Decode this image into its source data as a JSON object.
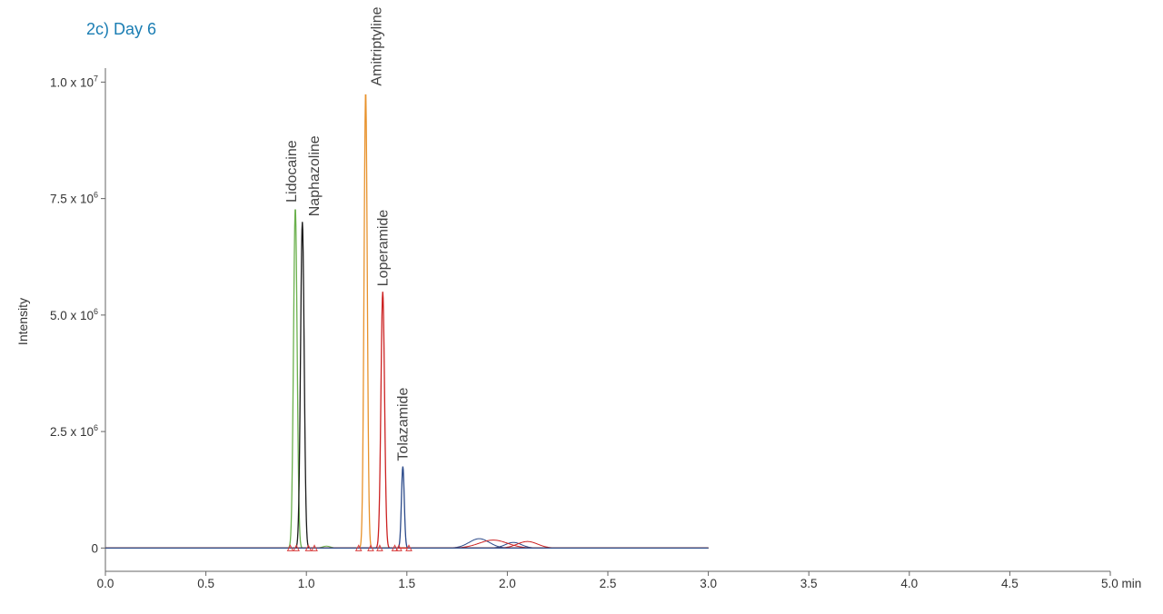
{
  "chart_data": {
    "type": "line",
    "title": "2c) Day 6",
    "xlabel": "min",
    "ylabel": "Intensity",
    "xlim": [
      0,
      5.0
    ],
    "ylim": [
      -500000,
      10300000
    ],
    "x_ticks": [
      {
        "value": 0.0,
        "label": "0.0"
      },
      {
        "value": 0.5,
        "label": "0.5"
      },
      {
        "value": 1.0,
        "label": "1.0"
      },
      {
        "value": 1.5,
        "label": "1.5"
      },
      {
        "value": 2.0,
        "label": "2.0"
      },
      {
        "value": 2.5,
        "label": "2.5"
      },
      {
        "value": 3.0,
        "label": "3.0"
      },
      {
        "value": 3.5,
        "label": "3.5"
      },
      {
        "value": 4.0,
        "label": "4.0"
      },
      {
        "value": 4.5,
        "label": "4.5"
      },
      {
        "value": 5.0,
        "label": "5.0"
      }
    ],
    "y_ticks": [
      {
        "value": 0,
        "label": "0",
        "sup": ""
      },
      {
        "value": 2500000,
        "label": "2.5 x 10",
        "sup": "6"
      },
      {
        "value": 5000000,
        "label": "5.0 x 10",
        "sup": "6"
      },
      {
        "value": 7500000,
        "label": "7.5 x 10",
        "sup": "6"
      },
      {
        "value": 10000000,
        "label": "1.0 x 10",
        "sup": "7"
      }
    ],
    "grid": false,
    "trace_end": 3.0,
    "series": [
      {
        "label": "Lidocaine",
        "color": "#6ab04c",
        "peak_rt": 0.945,
        "peak_height": 7300000,
        "width": 0.009
      },
      {
        "label": "Naphazoline",
        "color": "#1a1a1a",
        "peak_rt": 0.98,
        "peak_height": 7000000,
        "width": 0.009
      },
      {
        "label": "Amitriptyline",
        "color": "#e8922c",
        "peak_rt": 1.295,
        "peak_height": 9800000,
        "width": 0.008
      },
      {
        "label": "Loperamide",
        "color": "#cc2222",
        "peak_rt": 1.38,
        "peak_height": 5500000,
        "width": 0.009
      },
      {
        "label": "Tolazamide",
        "color": "#2b4a8a",
        "peak_rt": 1.48,
        "peak_height": 1750000,
        "width": 0.007
      }
    ],
    "minor_bumps": [
      {
        "color": "#2b4a8a",
        "rt": 1.86,
        "height": 200000,
        "width": 0.05
      },
      {
        "color": "#2b4a8a",
        "rt": 2.03,
        "height": 120000,
        "width": 0.04
      },
      {
        "color": "#cc2222",
        "rt": 1.93,
        "height": 170000,
        "width": 0.07
      },
      {
        "color": "#cc2222",
        "rt": 2.1,
        "height": 140000,
        "width": 0.05
      },
      {
        "color": "#6ab04c",
        "rt": 1.1,
        "height": 40000,
        "width": 0.02
      }
    ],
    "peak_markers": [
      0.92,
      0.95,
      1.01,
      1.04,
      1.26,
      1.32,
      1.365,
      1.44,
      1.46,
      1.51
    ],
    "marker_color": "#d94040"
  }
}
